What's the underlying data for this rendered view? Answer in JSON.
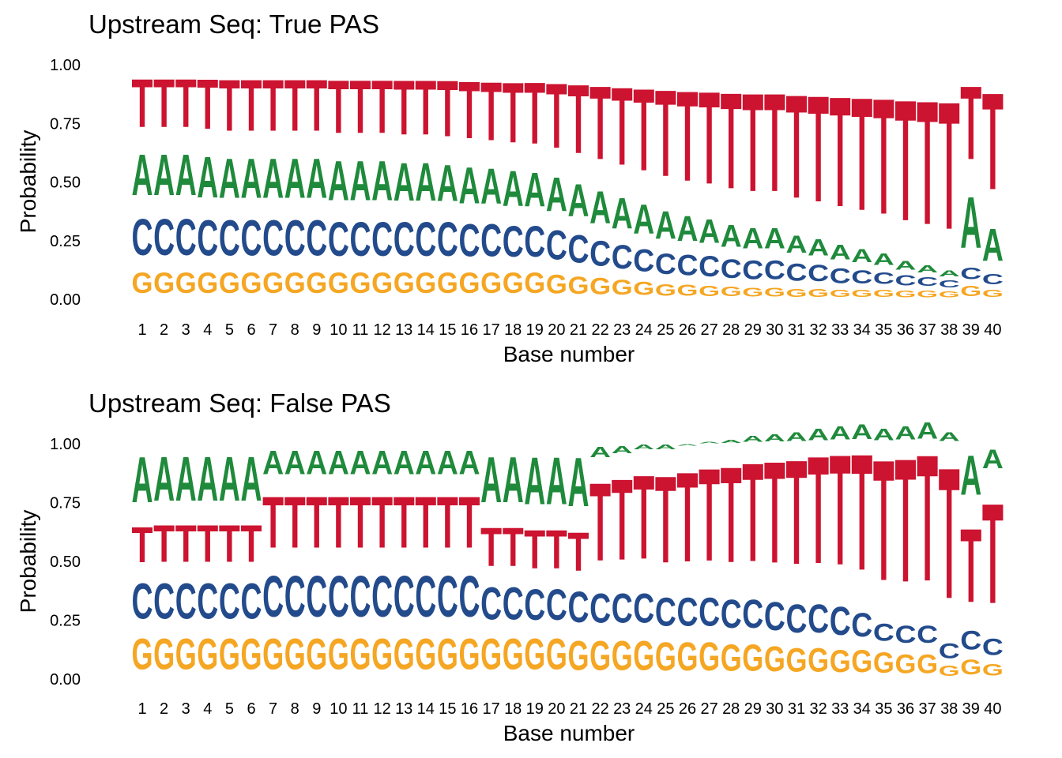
{
  "chart_data": [
    {
      "type": "sequence-logo",
      "title": "Upstream Seq: True PAS",
      "xlabel": "Base number",
      "ylabel": "Probability",
      "ylim": [
        0,
        1
      ],
      "yticks": [
        "0.00",
        "0.25",
        "0.50",
        "0.75",
        "1.00"
      ],
      "x": [
        1,
        2,
        3,
        4,
        5,
        6,
        7,
        8,
        9,
        10,
        11,
        12,
        13,
        14,
        15,
        16,
        17,
        18,
        19,
        20,
        21,
        22,
        23,
        24,
        25,
        26,
        27,
        28,
        29,
        30,
        31,
        32,
        33,
        34,
        35,
        36,
        37,
        38,
        39,
        40
      ],
      "series": [
        {
          "name": "G",
          "values": [
            0.14,
            0.14,
            0.14,
            0.14,
            0.14,
            0.14,
            0.14,
            0.14,
            0.14,
            0.14,
            0.14,
            0.14,
            0.14,
            0.14,
            0.14,
            0.14,
            0.14,
            0.14,
            0.14,
            0.13,
            0.12,
            0.11,
            0.1,
            0.09,
            0.08,
            0.075,
            0.07,
            0.065,
            0.06,
            0.06,
            0.055,
            0.055,
            0.05,
            0.05,
            0.05,
            0.045,
            0.045,
            0.04,
            0.07,
            0.05
          ]
        },
        {
          "name": "C",
          "values": [
            0.25,
            0.25,
            0.25,
            0.24,
            0.24,
            0.24,
            0.24,
            0.24,
            0.24,
            0.23,
            0.23,
            0.23,
            0.23,
            0.23,
            0.23,
            0.22,
            0.22,
            0.21,
            0.21,
            0.2,
            0.19,
            0.17,
            0.16,
            0.15,
            0.14,
            0.14,
            0.14,
            0.13,
            0.13,
            0.13,
            0.12,
            0.11,
            0.1,
            0.09,
            0.08,
            0.07,
            0.06,
            0.05,
            0.08,
            0.07
          ]
        },
        {
          "name": "A",
          "values": [
            0.28,
            0.28,
            0.28,
            0.28,
            0.27,
            0.27,
            0.27,
            0.27,
            0.27,
            0.27,
            0.27,
            0.27,
            0.26,
            0.26,
            0.25,
            0.25,
            0.24,
            0.24,
            0.23,
            0.23,
            0.22,
            0.22,
            0.21,
            0.2,
            0.19,
            0.17,
            0.16,
            0.15,
            0.14,
            0.14,
            0.12,
            0.11,
            0.1,
            0.09,
            0.08,
            0.06,
            0.05,
            0.04,
            0.35,
            0.22
          ]
        },
        {
          "name": "T",
          "values": [
            0.33,
            0.33,
            0.33,
            0.34,
            0.35,
            0.35,
            0.35,
            0.35,
            0.35,
            0.36,
            0.36,
            0.36,
            0.37,
            0.37,
            0.38,
            0.39,
            0.4,
            0.41,
            0.42,
            0.44,
            0.47,
            0.5,
            0.53,
            0.56,
            0.59,
            0.615,
            0.63,
            0.655,
            0.67,
            0.67,
            0.705,
            0.725,
            0.75,
            0.77,
            0.79,
            0.825,
            0.845,
            0.87,
            0.5,
            0.66
          ]
        }
      ]
    },
    {
      "type": "sequence-logo",
      "title": "Upstream Seq: False PAS",
      "xlabel": "Base number",
      "ylabel": "Probability",
      "ylim": [
        0,
        1
      ],
      "yticks": [
        "0.00",
        "0.25",
        "0.50",
        "0.75",
        "1.00"
      ],
      "x": [
        1,
        2,
        3,
        4,
        5,
        6,
        7,
        8,
        9,
        10,
        11,
        12,
        13,
        14,
        15,
        16,
        17,
        18,
        19,
        20,
        21,
        22,
        23,
        24,
        25,
        26,
        27,
        28,
        29,
        30,
        31,
        32,
        33,
        34,
        35,
        36,
        37,
        38,
        39,
        40
      ],
      "series": [
        {
          "name": "G",
          "values": [
            0.21,
            0.21,
            0.21,
            0.21,
            0.21,
            0.21,
            0.21,
            0.21,
            0.21,
            0.21,
            0.21,
            0.21,
            0.21,
            0.21,
            0.21,
            0.21,
            0.21,
            0.21,
            0.21,
            0.21,
            0.2,
            0.2,
            0.2,
            0.2,
            0.19,
            0.19,
            0.19,
            0.18,
            0.18,
            0.17,
            0.16,
            0.16,
            0.15,
            0.15,
            0.14,
            0.13,
            0.13,
            0.07,
            0.1,
            0.08
          ]
        },
        {
          "name": "C",
          "values": [
            0.24,
            0.24,
            0.24,
            0.24,
            0.24,
            0.24,
            0.28,
            0.28,
            0.28,
            0.28,
            0.28,
            0.28,
            0.28,
            0.28,
            0.28,
            0.28,
            0.22,
            0.22,
            0.21,
            0.21,
            0.21,
            0.2,
            0.2,
            0.2,
            0.19,
            0.19,
            0.19,
            0.19,
            0.19,
            0.19,
            0.19,
            0.19,
            0.19,
            0.16,
            0.12,
            0.12,
            0.12,
            0.1,
            0.13,
            0.11
          ]
        },
        {
          "name": "T",
          "values": [
            0.24,
            0.25,
            0.25,
            0.25,
            0.25,
            0.25,
            0.35,
            0.35,
            0.35,
            0.35,
            0.35,
            0.35,
            0.35,
            0.35,
            0.35,
            0.35,
            0.26,
            0.26,
            0.26,
            0.26,
            0.26,
            0.53,
            0.55,
            0.57,
            0.59,
            0.61,
            0.63,
            0.65,
            0.67,
            0.69,
            0.71,
            0.73,
            0.75,
            0.79,
            0.82,
            0.84,
            0.86,
            0.89,
            0.5,
            0.68
          ]
        },
        {
          "name": "A",
          "values": [
            0.31,
            0.3,
            0.3,
            0.3,
            0.3,
            0.3,
            0.16,
            0.16,
            0.16,
            0.16,
            0.16,
            0.16,
            0.16,
            0.16,
            0.16,
            0.16,
            0.31,
            0.31,
            0.32,
            0.32,
            0.33,
            0.07,
            0.05,
            0.03,
            0.03,
            0.01,
            -0.01,
            -0.02,
            -0.04,
            -0.05,
            -0.06,
            -0.08,
            -0.09,
            -0.1,
            -0.08,
            -0.09,
            -0.11,
            -0.06,
            0.27,
            0.13
          ]
        }
      ],
      "colors": {
        "A": "#1f8a3b",
        "C": "#234b8c",
        "G": "#f5a623",
        "T": "#cc1330"
      }
    }
  ]
}
